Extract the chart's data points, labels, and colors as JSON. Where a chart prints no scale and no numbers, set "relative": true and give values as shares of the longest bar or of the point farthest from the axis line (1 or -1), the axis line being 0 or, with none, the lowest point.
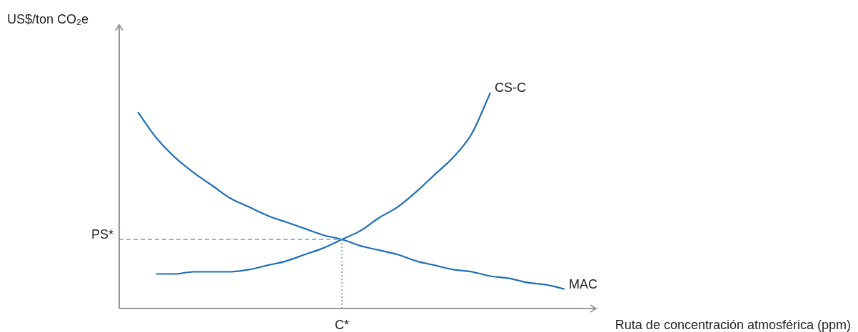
{
  "chart_data": {
    "type": "line",
    "relative": true,
    "xlabel": "Ruta de concentración atmosférica (ppm)",
    "categories": [
      null,
      null,
      null,
      null,
      null,
      null,
      null,
      null,
      null,
      null,
      null,
      null,
      null,
      null,
      null,
      null,
      null,
      null,
      null,
      null,
      null,
      null,
      null,
      null,
      null,
      null,
      null
    ],
    "series": [
      {
        "name": "CS-C",
        "color": "#1f6fb8",
        "values": [
          null,
          null,
          0.16,
          0.16,
          0.17,
          0.17,
          0.17,
          0.18,
          0.2,
          0.22,
          0.25,
          0.28,
          0.32,
          0.36,
          0.42,
          0.47,
          0.54,
          0.62,
          0.7,
          0.81,
          1.0,
          null,
          null,
          null,
          null,
          null,
          null
        ]
      },
      {
        "name": "MAC",
        "color": "#1f6fb8",
        "values": [
          null,
          0.91,
          0.79,
          0.7,
          0.63,
          0.57,
          0.51,
          0.47,
          0.43,
          0.4,
          0.37,
          0.34,
          0.32,
          0.29,
          0.27,
          0.25,
          0.22,
          0.2,
          0.18,
          0.17,
          0.15,
          0.14,
          0.12,
          0.11,
          0.09,
          null,
          null
        ]
      }
    ],
    "ref_lines": [
      {
        "axis": "y",
        "value": 0.32,
        "label": "PS*",
        "color": "#6a9fd8",
        "line_style": "dashed"
      }
    ],
    "annotations": [
      "US$/ton CO₂e",
      "C*"
    ],
    "legend": false,
    "marker": "none",
    "line_style": "solid"
  }
}
